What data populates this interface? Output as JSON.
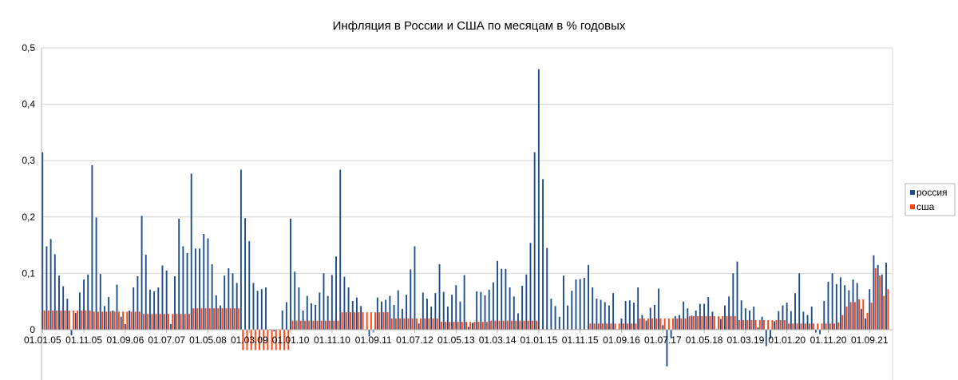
{
  "chart_data": {
    "type": "bar",
    "title": "Инфляция в России и США по месяцам в % годовых",
    "xlabel": "",
    "ylabel": "",
    "frequency": "monthly",
    "x_start": "01.01.05",
    "x_tick_labels": [
      "01.01.05",
      "01.11.05",
      "01.09.06",
      "01.07.07",
      "01.05.08",
      "01.03.09",
      "01.01.10",
      "01.11.10",
      "01.09.11",
      "01.07.12",
      "01.05.13",
      "01.03.14",
      "01.01.15",
      "01.11.15",
      "01.09.16",
      "01.07.17",
      "01.05.18",
      "01.03.19",
      "01.01.20",
      "01.11.20",
      "01.09.21"
    ],
    "y_tick_labels": [
      "0",
      "0,1",
      "0,2",
      "0,3",
      "0,4",
      "0,5"
    ],
    "y_ticks": [
      0,
      0.1,
      0.2,
      0.3,
      0.4,
      0.5
    ],
    "ylim": [
      -0.1,
      0.5
    ],
    "grid": true,
    "legend_position": "right",
    "series": [
      {
        "name": "россия",
        "color": "#1f4e8c",
        "values": [
          0.315,
          0.148,
          0.161,
          0.134,
          0.096,
          0.077,
          0.055,
          -0.01,
          0.03,
          0.066,
          0.089,
          0.098,
          0.292,
          0.199,
          0.099,
          0.042,
          0.058,
          0.034,
          0.08,
          0.023,
          0.01,
          0.034,
          0.075,
          0.095,
          0.202,
          0.133,
          0.071,
          0.068,
          0.075,
          0.114,
          0.105,
          0.01,
          0.095,
          0.197,
          0.148,
          0.136,
          0.277,
          0.144,
          0.144,
          0.17,
          0.162,
          0.116,
          0.061,
          0.043,
          0.096,
          0.109,
          0.1,
          0.083,
          0.284,
          0.198,
          0.157,
          0.083,
          0.069,
          0.072,
          0.075,
          0.001,
          -0.003,
          0.001,
          0.034,
          0.049,
          0.197,
          0.103,
          0.075,
          0.034,
          0.06,
          0.047,
          0.044,
          0.066,
          0.1,
          0.06,
          0.097,
          0.13,
          0.284,
          0.094,
          0.075,
          0.051,
          0.057,
          0.042,
          -0.001,
          -0.012,
          -0.005,
          0.057,
          0.05,
          0.053,
          0.06,
          0.044,
          0.07,
          0.037,
          0.062,
          0.107,
          0.148,
          0.011,
          0.066,
          0.055,
          0.041,
          0.065,
          0.116,
          0.067,
          0.041,
          0.062,
          0.079,
          0.05,
          0.097,
          0.005,
          0.012,
          0.068,
          0.067,
          0.061,
          0.071,
          0.084,
          0.122,
          0.108,
          0.108,
          0.075,
          0.059,
          0.029,
          0.078,
          0.098,
          0.154,
          0.315,
          0.462,
          0.267,
          0.145,
          0.055,
          0.042,
          0.023,
          0.096,
          0.043,
          0.069,
          0.089,
          0.09,
          0.092,
          0.115,
          0.075,
          0.055,
          0.053,
          0.049,
          0.043,
          0.065,
          0.001,
          0.02,
          0.051,
          0.052,
          0.048,
          0.075,
          0.026,
          0.016,
          0.039,
          0.044,
          0.073,
          0.008,
          -0.065,
          -0.015,
          0.024,
          0.026,
          0.05,
          0.038,
          0.025,
          0.034,
          0.046,
          0.046,
          0.058,
          0.032,
          0.001,
          0.019,
          0.043,
          0.059,
          0.1,
          0.121,
          0.052,
          0.038,
          0.034,
          0.041,
          0.004,
          0.023,
          -0.029,
          -0.016,
          0.015,
          0.033,
          0.043,
          0.048,
          0.033,
          0.065,
          0.1,
          0.032,
          0.026,
          0.041,
          -0.005,
          -0.008,
          0.051,
          0.085,
          0.1,
          0.081,
          0.093,
          0.079,
          0.07,
          0.089,
          0.083,
          0.037,
          0.02,
          0.072,
          0.132,
          0.115,
          0.098,
          0.119
        ]
      },
      {
        "name": "сша",
        "color": "#ff420e",
        "values": [
          0.034,
          0.034,
          0.034,
          0.034,
          0.034,
          0.034,
          0.034,
          0.034,
          0.034,
          0.034,
          0.034,
          0.034,
          0.032,
          0.032,
          0.032,
          0.032,
          0.032,
          0.032,
          0.032,
          0.032,
          0.032,
          0.032,
          0.032,
          0.032,
          0.028,
          0.028,
          0.028,
          0.028,
          0.028,
          0.028,
          0.028,
          0.028,
          0.028,
          0.028,
          0.028,
          0.028,
          0.038,
          0.038,
          0.038,
          0.038,
          0.038,
          0.038,
          0.038,
          0.038,
          0.038,
          0.038,
          0.038,
          0.038,
          -0.036,
          -0.036,
          -0.036,
          -0.036,
          -0.036,
          -0.036,
          -0.036,
          -0.036,
          -0.036,
          -0.036,
          -0.036,
          -0.036,
          0.016,
          0.016,
          0.016,
          0.016,
          0.016,
          0.016,
          0.016,
          0.016,
          0.016,
          0.016,
          0.016,
          0.016,
          0.031,
          0.031,
          0.031,
          0.031,
          0.031,
          0.031,
          0.031,
          0.031,
          0.031,
          0.031,
          0.031,
          0.031,
          0.02,
          0.02,
          0.02,
          0.02,
          0.02,
          0.02,
          0.02,
          0.02,
          0.02,
          0.02,
          0.02,
          0.02,
          0.014,
          0.014,
          0.014,
          0.014,
          0.014,
          0.014,
          0.014,
          0.014,
          0.014,
          0.014,
          0.014,
          0.014,
          0.016,
          0.016,
          0.016,
          0.016,
          0.016,
          0.016,
          0.016,
          0.016,
          0.016,
          0.016,
          0.016,
          0.016,
          0.001,
          0.001,
          0.001,
          0.001,
          0.001,
          0.001,
          0.001,
          0.001,
          0.001,
          0.001,
          0.001,
          0.001,
          0.011,
          0.011,
          0.011,
          0.011,
          0.011,
          0.011,
          0.011,
          0.011,
          0.011,
          0.011,
          0.011,
          0.011,
          0.02,
          0.02,
          0.02,
          0.02,
          0.02,
          0.02,
          0.02,
          0.02,
          0.02,
          0.02,
          0.02,
          0.02,
          0.024,
          0.024,
          0.024,
          0.024,
          0.024,
          0.024,
          0.024,
          0.024,
          0.024,
          0.024,
          0.024,
          0.024,
          0.017,
          0.017,
          0.017,
          0.017,
          0.017,
          0.017,
          0.017,
          0.017,
          0.017,
          0.017,
          0.017,
          0.017,
          0.011,
          0.011,
          0.011,
          0.011,
          0.011,
          0.011,
          0.011,
          0.011,
          0.011,
          0.011,
          0.011,
          0.011,
          0.013,
          0.026,
          0.041,
          0.049,
          0.049,
          0.054,
          0.054,
          0.03,
          0.048,
          0.109,
          0.096,
          0.06,
          0.072
        ]
      }
    ]
  }
}
